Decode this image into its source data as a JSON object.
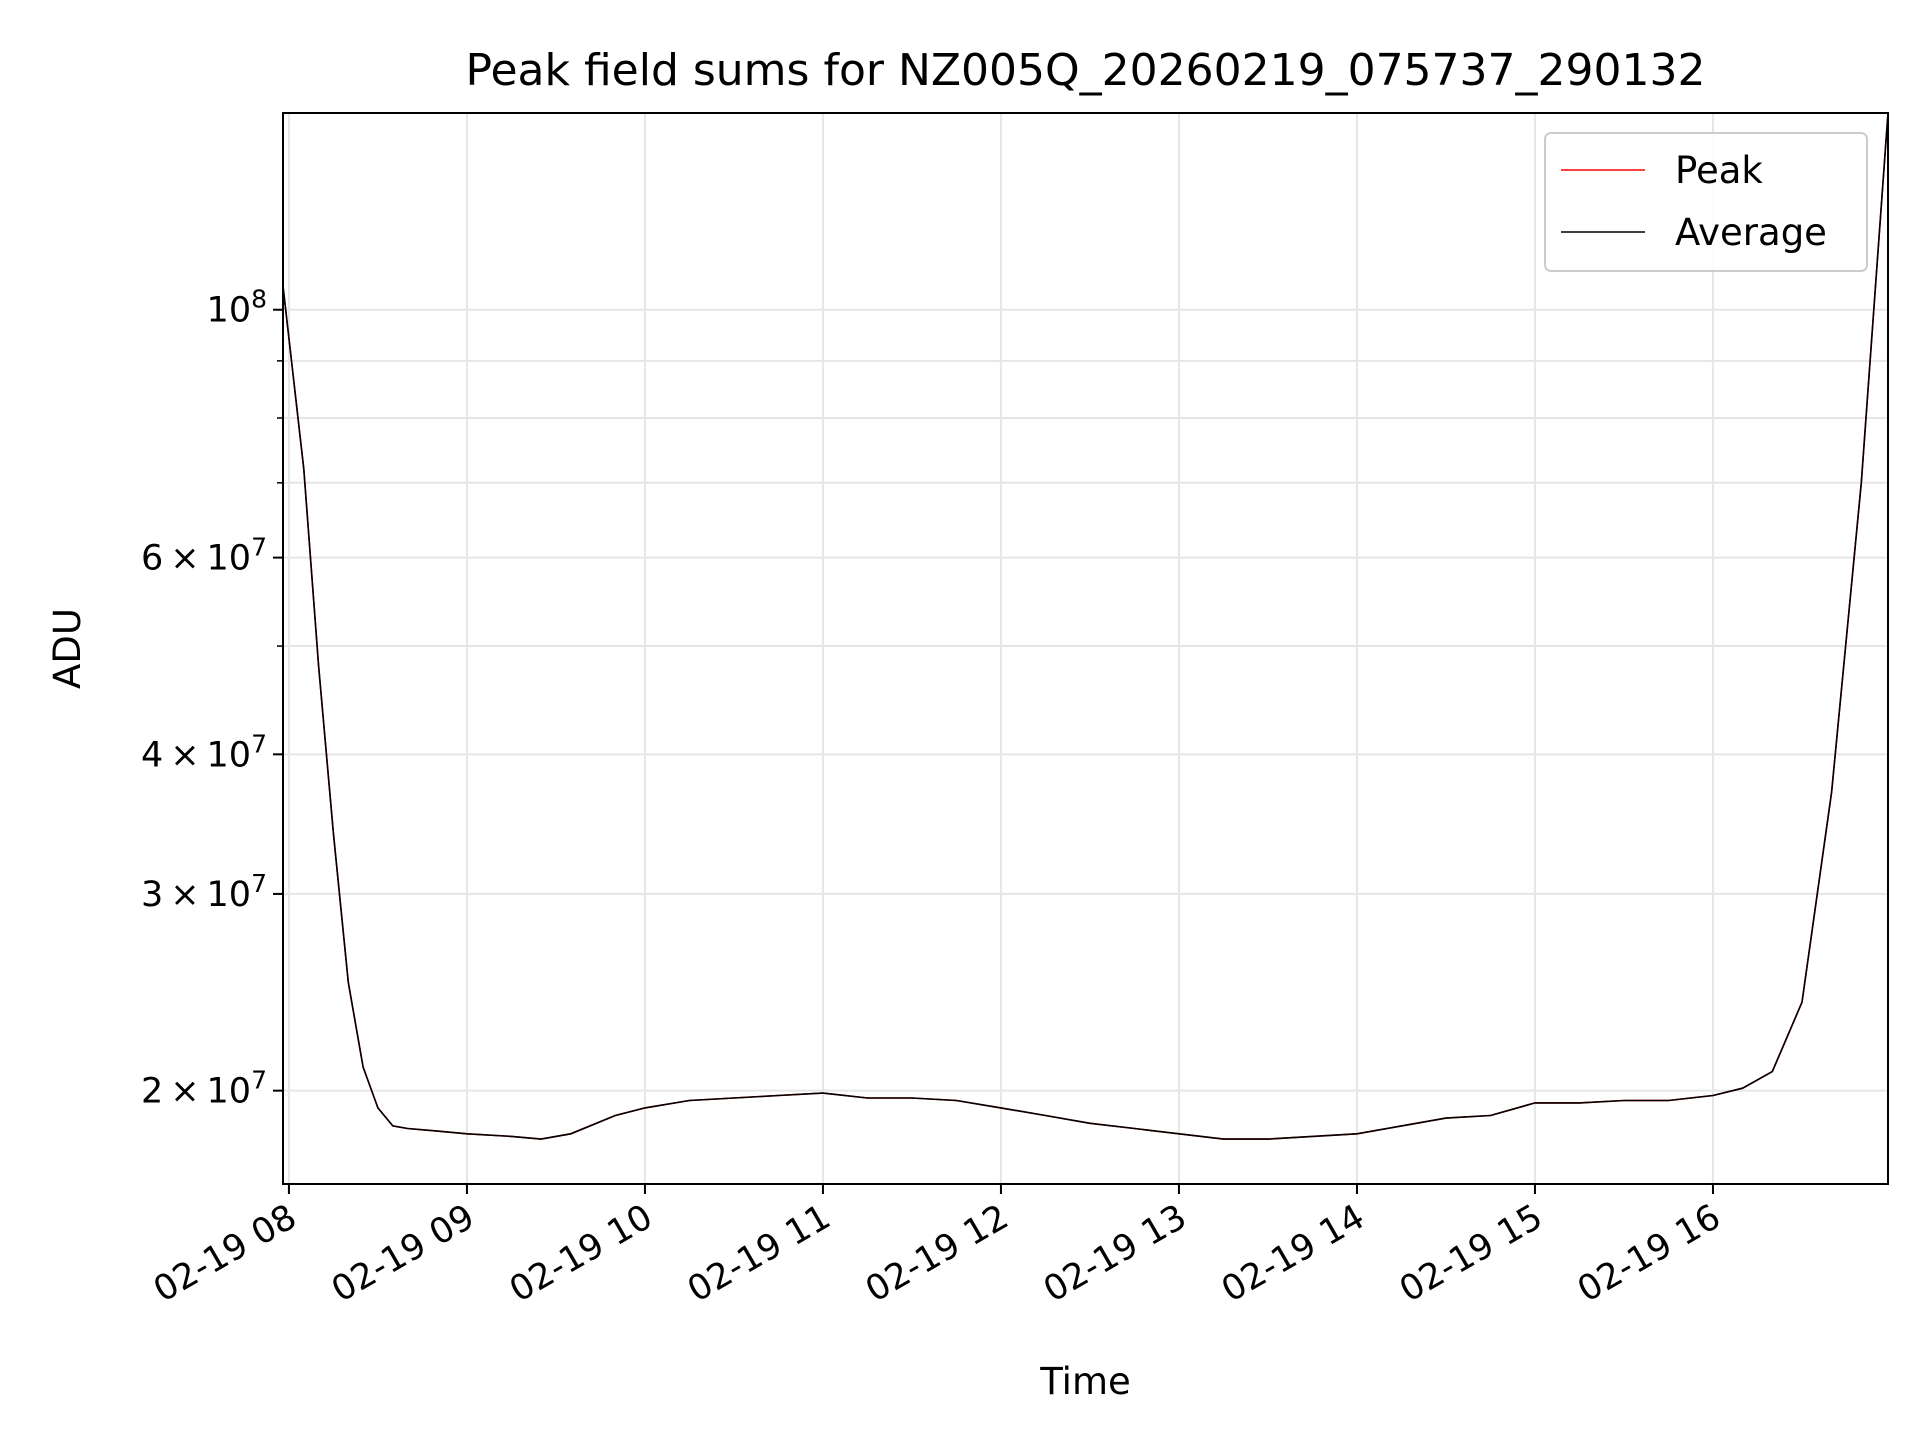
{
  "chart_data": {
    "type": "line",
    "title": "Peak field sums for NZ005Q_20260219_075737_290132",
    "xlabel": "Time",
    "ylabel": "ADU",
    "yscale": "log",
    "grid": true,
    "legend_position": "top-right",
    "xlim": [
      "2026-02-19 07:58",
      "2026-02-19 16:59"
    ],
    "ylim": [
      16500000,
      150000000
    ],
    "x_ticks": [
      {
        "value": "2026-02-19 08:00",
        "label": "02-19 08"
      },
      {
        "value": "2026-02-19 09:00",
        "label": "02-19 09"
      },
      {
        "value": "2026-02-19 10:00",
        "label": "02-19 10"
      },
      {
        "value": "2026-02-19 11:00",
        "label": "02-19 11"
      },
      {
        "value": "2026-02-19 12:00",
        "label": "02-19 12"
      },
      {
        "value": "2026-02-19 13:00",
        "label": "02-19 13"
      },
      {
        "value": "2026-02-19 14:00",
        "label": "02-19 14"
      },
      {
        "value": "2026-02-19 15:00",
        "label": "02-19 15"
      },
      {
        "value": "2026-02-19 16:00",
        "label": "02-19 16"
      }
    ],
    "y_major_ticks": [
      {
        "value": 20000000,
        "base": "2",
        "exp": "7"
      },
      {
        "value": 30000000,
        "base": "3",
        "exp": "7"
      },
      {
        "value": 40000000,
        "base": "4",
        "exp": "7"
      },
      {
        "value": 60000000,
        "base": "6",
        "exp": "7"
      },
      {
        "value": 100000000,
        "base": "",
        "exp": "8"
      }
    ],
    "y_minor_ticks": [
      50000000,
      70000000,
      80000000,
      90000000
    ],
    "x": [
      "2026-02-19 07:58",
      "2026-02-19 08:05",
      "2026-02-19 08:10",
      "2026-02-19 08:15",
      "2026-02-19 08:20",
      "2026-02-19 08:25",
      "2026-02-19 08:30",
      "2026-02-19 08:35",
      "2026-02-19 08:40",
      "2026-02-19 08:50",
      "2026-02-19 09:00",
      "2026-02-19 09:15",
      "2026-02-19 09:25",
      "2026-02-19 09:35",
      "2026-02-19 09:50",
      "2026-02-19 10:00",
      "2026-02-19 10:15",
      "2026-02-19 10:30",
      "2026-02-19 10:45",
      "2026-02-19 11:00",
      "2026-02-19 11:15",
      "2026-02-19 11:30",
      "2026-02-19 11:45",
      "2026-02-19 12:00",
      "2026-02-19 12:15",
      "2026-02-19 12:30",
      "2026-02-19 12:45",
      "2026-02-19 13:00",
      "2026-02-19 13:15",
      "2026-02-19 13:30",
      "2026-02-19 13:45",
      "2026-02-19 14:00",
      "2026-02-19 14:15",
      "2026-02-19 14:30",
      "2026-02-19 14:45",
      "2026-02-19 15:00",
      "2026-02-19 15:15",
      "2026-02-19 15:30",
      "2026-02-19 15:45",
      "2026-02-19 16:00",
      "2026-02-19 16:10",
      "2026-02-19 16:20",
      "2026-02-19 16:30",
      "2026-02-19 16:40",
      "2026-02-19 16:50",
      "2026-02-19 16:59"
    ],
    "series": [
      {
        "name": "Peak",
        "color": "#ff0000",
        "values": [
          105000000,
          72000000,
          48000000,
          34000000,
          25000000,
          21000000,
          19300000,
          18600000,
          18500000,
          18400000,
          18300000,
          18200000,
          18100000,
          18300000,
          19000000,
          19300000,
          19600000,
          19700000,
          19800000,
          19900000,
          19700000,
          19700000,
          19600000,
          19300000,
          19000000,
          18700000,
          18500000,
          18300000,
          18100000,
          18100000,
          18200000,
          18300000,
          18600000,
          18900000,
          19000000,
          19500000,
          19500000,
          19600000,
          19600000,
          19800000,
          20100000,
          20800000,
          24000000,
          37000000,
          70000000,
          150000000
        ]
      },
      {
        "name": "Average",
        "color": "#000000",
        "values": [
          105000000,
          72000000,
          48000000,
          34000000,
          25000000,
          21000000,
          19300000,
          18600000,
          18500000,
          18400000,
          18300000,
          18200000,
          18100000,
          18300000,
          19000000,
          19300000,
          19600000,
          19700000,
          19800000,
          19900000,
          19700000,
          19700000,
          19600000,
          19300000,
          19000000,
          18700000,
          18500000,
          18300000,
          18100000,
          18100000,
          18200000,
          18300000,
          18600000,
          18900000,
          19000000,
          19500000,
          19500000,
          19600000,
          19600000,
          19800000,
          20100000,
          20800000,
          24000000,
          37000000,
          70000000,
          150000000
        ]
      }
    ]
  }
}
